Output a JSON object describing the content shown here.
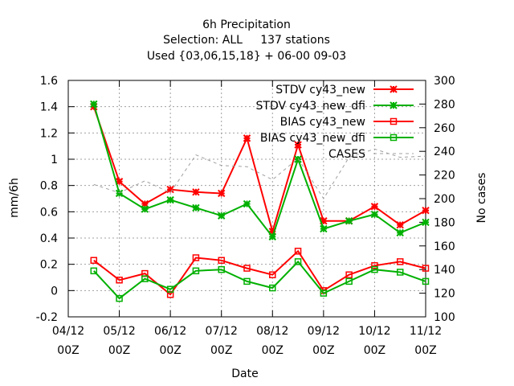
{
  "chart_data": {
    "type": "line",
    "title": [
      "6h Precipitation",
      "Selection: ALL     137 stations",
      "Used {03,06,15,18} + 06-00 09-03"
    ],
    "xlabel": "Date",
    "ylabel": "mm/6h",
    "y2label": "No cases",
    "ylim": [
      -0.2,
      1.6
    ],
    "y2lim": [
      100,
      300
    ],
    "yticks": [
      "-0.2",
      "0",
      "0.2",
      "0.4",
      "0.6",
      "0.8",
      "1",
      "1.2",
      "1.4",
      "1.6"
    ],
    "y2ticks": [
      "100",
      "120",
      "140",
      "160",
      "180",
      "200",
      "220",
      "240",
      "260",
      "280",
      "300"
    ],
    "xticks": [
      {
        "line1": "04/12",
        "line2": "00Z"
      },
      {
        "line1": "05/12",
        "line2": "00Z"
      },
      {
        "line1": "06/12",
        "line2": "00Z"
      },
      {
        "line1": "07/12",
        "line2": "00Z"
      },
      {
        "line1": "08/12",
        "line2": "00Z"
      },
      {
        "line1": "09/12",
        "line2": "00Z"
      },
      {
        "line1": "10/12",
        "line2": "00Z"
      },
      {
        "line1": "11/12",
        "line2": "00Z"
      }
    ],
    "x": [
      "2011-12-04 12Z",
      "2011-12-05 00Z",
      "2011-12-05 12Z",
      "2011-12-06 00Z",
      "2011-12-06 12Z",
      "2011-12-07 00Z",
      "2011-12-07 12Z",
      "2011-12-08 00Z",
      "2011-12-08 12Z",
      "2011-12-09 00Z",
      "2011-12-09 12Z",
      "2011-12-10 00Z",
      "2011-12-10 12Z",
      "2011-12-11 00Z"
    ],
    "x_index": [
      0.5,
      1,
      1.5,
      2,
      2.5,
      3,
      3.5,
      4,
      4.5,
      5,
      5.5,
      6,
      6.5,
      7
    ],
    "grid": true,
    "legend_position": "top-right",
    "series": [
      {
        "name": "STDV cy43_new",
        "color": "#ff0000",
        "marker": "x",
        "axis": "y1",
        "values": [
          1.4,
          0.83,
          0.66,
          0.77,
          0.75,
          0.74,
          1.16,
          0.45,
          1.11,
          0.53,
          0.53,
          0.64,
          0.5,
          0.61
        ]
      },
      {
        "name": "STDV cy43_new_dfi",
        "color": "#00b000",
        "marker": "x",
        "axis": "y1",
        "values": [
          1.42,
          0.74,
          0.62,
          0.69,
          0.63,
          0.57,
          0.66,
          0.41,
          1.0,
          0.47,
          0.53,
          0.58,
          0.44,
          0.52
        ]
      },
      {
        "name": "BIAS cy43_new",
        "color": "#ff0000",
        "marker": "square",
        "axis": "y1",
        "values": [
          0.23,
          0.08,
          0.13,
          -0.03,
          0.25,
          0.23,
          0.17,
          0.12,
          0.3,
          0.0,
          0.12,
          0.19,
          0.22,
          0.17
        ]
      },
      {
        "name": "BIAS cy43_new_dfi",
        "color": "#00b000",
        "marker": "square",
        "axis": "y1",
        "values": [
          0.15,
          -0.06,
          0.09,
          0.01,
          0.15,
          0.16,
          0.07,
          0.02,
          0.22,
          -0.02,
          0.07,
          0.16,
          0.14,
          0.07
        ]
      },
      {
        "name": "CASES",
        "color": "#a0a0a0",
        "marker": "none",
        "dashed": true,
        "axis": "y2",
        "values": [
          212,
          205,
          215,
          205,
          237,
          228,
          227,
          216,
          234,
          200,
          235,
          242,
          235,
          236
        ]
      }
    ]
  }
}
